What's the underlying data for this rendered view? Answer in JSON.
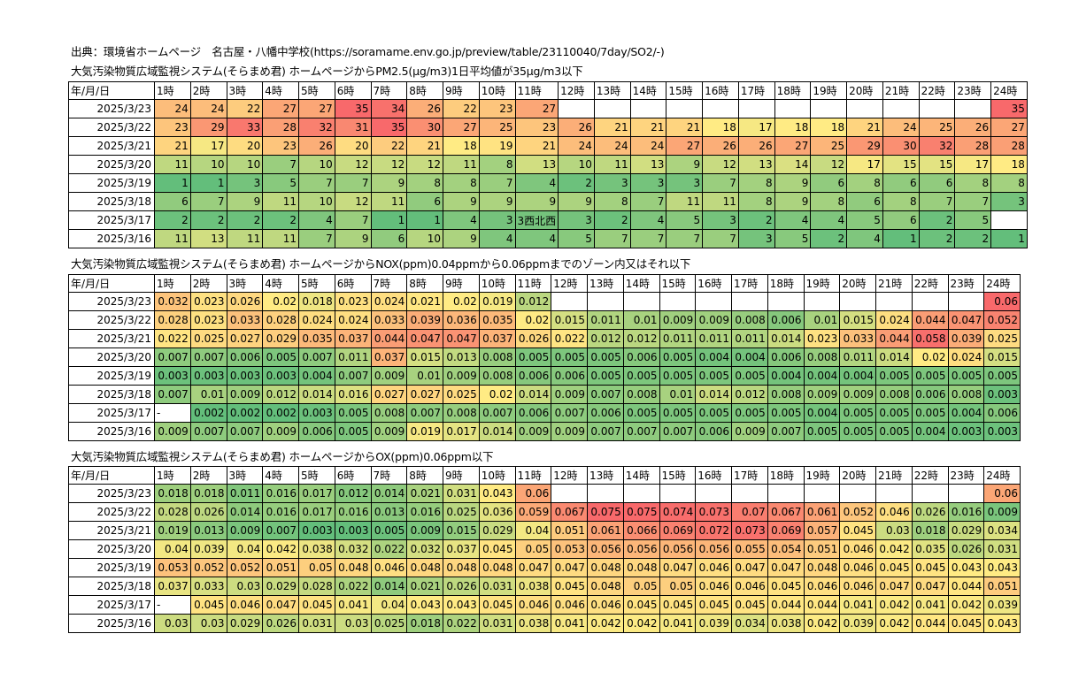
{
  "source_line": "出典：環境省ホームページ　名古屋・八幡中学校(https://soramame.env.go.jp/preview/table/23110040/7day/SO2/-)",
  "header_row": [
    "年/月/日",
    "1時",
    "2時",
    "3時",
    "4時",
    "5時",
    "6時",
    "7時",
    "8時",
    "9時",
    "10時",
    "11時",
    "12時",
    "13時",
    "14時",
    "15時",
    "16時",
    "17時",
    "18時",
    "19時",
    "20時",
    "21時",
    "22時",
    "23時",
    "24時"
  ],
  "dates": [
    "2025/3/23",
    "2025/3/22",
    "2025/3/21",
    "2025/3/20",
    "2025/3/19",
    "2025/3/18",
    "2025/3/17",
    "2025/3/16"
  ],
  "palette": {
    "red": "#f8696b",
    "orange": "#fbaa77",
    "yellow": "#ffeb84",
    "lightgreen": "#c3da80",
    "green": "#63be7b",
    "white": "#ffffff"
  },
  "tables": [
    {
      "title": "大気汚染物質広域監視システム(そらまめ君) ホームページからPM2.5(μg/m3)1日平均値が35μg/m3以下",
      "color_scale": {
        "min": 1,
        "mid": 18,
        "max": 35
      },
      "rows": [
        [
          "24",
          "24",
          "22",
          "27",
          "27",
          "35",
          "34",
          "26",
          "22",
          "23",
          "27",
          "",
          "",
          "",
          "",
          "",
          "",
          "",
          "",
          "",
          "",
          "",
          "",
          "35"
        ],
        [
          "23",
          "29",
          "33",
          "28",
          "32",
          "31",
          "35",
          "30",
          "27",
          "25",
          "23",
          "26",
          "21",
          "21",
          "21",
          "18",
          "17",
          "18",
          "18",
          "21",
          "24",
          "25",
          "26",
          "27"
        ],
        [
          "21",
          "17",
          "20",
          "23",
          "26",
          "20",
          "22",
          "21",
          "18",
          "19",
          "21",
          "24",
          "24",
          "24",
          "27",
          "26",
          "26",
          "27",
          "25",
          "29",
          "30",
          "32",
          "28",
          "28"
        ],
        [
          "11",
          "10",
          "10",
          "7",
          "10",
          "12",
          "12",
          "12",
          "11",
          "8",
          "13",
          "10",
          "11",
          "13",
          "9",
          "12",
          "13",
          "14",
          "12",
          "17",
          "15",
          "15",
          "17",
          "18"
        ],
        [
          "1",
          "1",
          "3",
          "5",
          "7",
          "7",
          "9",
          "8",
          "8",
          "7",
          "4",
          "2",
          "3",
          "3",
          "3",
          "7",
          "8",
          "9",
          "6",
          "8",
          "6",
          "6",
          "8",
          "8"
        ],
        [
          "6",
          "7",
          "9",
          "11",
          "10",
          "12",
          "11",
          "6",
          "9",
          "9",
          "9",
          "9",
          "8",
          "7",
          "11",
          "11",
          "8",
          "9",
          "8",
          "6",
          "8",
          "7",
          "7",
          "3"
        ],
        [
          "2",
          "2",
          "2",
          "2",
          "4",
          "7",
          "1",
          "1",
          "4",
          "3",
          "3西北西",
          "3",
          "2",
          "4",
          "5",
          "3",
          "2",
          "4",
          "4",
          "5",
          "6",
          "2",
          "5",
          ""
        ],
        [
          "11",
          "13",
          "11",
          "11",
          "7",
          "9",
          "6",
          "10",
          "9",
          "4",
          "4",
          "5",
          "7",
          "7",
          "7",
          "7",
          "3",
          "5",
          "2",
          "4",
          "1",
          "2",
          "2",
          "1"
        ]
      ]
    },
    {
      "title": "大気汚染物質広域監視システム(そらまめ君) ホームページからNOX(ppm)0.04ppmから0.06ppmまでのゾーン内又はそれ以下",
      "color_scale": {
        "min": 0.002,
        "mid": 0.02,
        "max": 0.06
      },
      "rows": [
        [
          "0.032",
          "0.023",
          "0.026",
          "0.02",
          "0.018",
          "0.023",
          "0.024",
          "0.021",
          "0.02",
          "0.019",
          "0.012",
          "",
          "",
          "",
          "",
          "",
          "",
          "",
          "",
          "",
          "",
          "",
          "",
          "0.06"
        ],
        [
          "0.028",
          "0.023",
          "0.033",
          "0.028",
          "0.024",
          "0.024",
          "0.033",
          "0.039",
          "0.036",
          "0.035",
          "0.02",
          "0.015",
          "0.011",
          "0.01",
          "0.009",
          "0.009",
          "0.008",
          "0.006",
          "0.01",
          "0.015",
          "0.024",
          "0.044",
          "0.047",
          "0.052"
        ],
        [
          "0.022",
          "0.025",
          "0.027",
          "0.029",
          "0.035",
          "0.037",
          "0.044",
          "0.047",
          "0.047",
          "0.037",
          "0.026",
          "0.022",
          "0.012",
          "0.012",
          "0.011",
          "0.011",
          "0.011",
          "0.014",
          "0.023",
          "0.033",
          "0.044",
          "0.058",
          "0.039",
          "0.025"
        ],
        [
          "0.007",
          "0.007",
          "0.006",
          "0.005",
          "0.007",
          "0.011",
          "0.037",
          "0.015",
          "0.013",
          "0.008",
          "0.005",
          "0.005",
          "0.005",
          "0.006",
          "0.005",
          "0.004",
          "0.004",
          "0.006",
          "0.008",
          "0.011",
          "0.014",
          "0.02",
          "0.024",
          "0.015"
        ],
        [
          "0.003",
          "0.003",
          "0.003",
          "0.003",
          "0.004",
          "0.007",
          "0.009",
          "0.01",
          "0.009",
          "0.008",
          "0.006",
          "0.006",
          "0.005",
          "0.005",
          "0.005",
          "0.005",
          "0.005",
          "0.004",
          "0.004",
          "0.004",
          "0.005",
          "0.005",
          "0.005",
          "0.005"
        ],
        [
          "0.007",
          "0.01",
          "0.009",
          "0.012",
          "0.014",
          "0.016",
          "0.027",
          "0.027",
          "0.025",
          "0.02",
          "0.014",
          "0.009",
          "0.007",
          "0.008",
          "0.01",
          "0.014",
          "0.012",
          "0.008",
          "0.009",
          "0.009",
          "0.008",
          "0.006",
          "0.008",
          "0.003"
        ],
        [
          "-",
          "0.002",
          "0.002",
          "0.002",
          "0.003",
          "0.005",
          "0.008",
          "0.007",
          "0.008",
          "0.007",
          "0.006",
          "0.007",
          "0.006",
          "0.005",
          "0.005",
          "0.005",
          "0.005",
          "0.005",
          "0.004",
          "0.005",
          "0.005",
          "0.005",
          "0.004",
          "0.006"
        ],
        [
          "0.009",
          "0.007",
          "0.007",
          "0.009",
          "0.006",
          "0.005",
          "0.009",
          "0.019",
          "0.017",
          "0.014",
          "0.009",
          "0.009",
          "0.007",
          "0.007",
          "0.007",
          "0.006",
          "0.009",
          "0.007",
          "0.005",
          "0.005",
          "0.005",
          "0.004",
          "0.003",
          "0.003"
        ]
      ]
    },
    {
      "title": "大気汚染物質広域監視システム(そらまめ君) ホームページからOX(ppm)0.06ppm以下",
      "color_scale": {
        "min": 0.003,
        "mid": 0.043,
        "max": 0.075
      },
      "rows": [
        [
          "0.018",
          "0.018",
          "0.011",
          "0.016",
          "0.017",
          "0.012",
          "0.014",
          "0.021",
          "0.031",
          "0.043",
          "0.06",
          "",
          "",
          "",
          "",
          "",
          "",
          "",
          "",
          "",
          "",
          "",
          "",
          "0.06"
        ],
        [
          "0.028",
          "0.026",
          "0.014",
          "0.016",
          "0.017",
          "0.016",
          "0.013",
          "0.016",
          "0.025",
          "0.036",
          "0.059",
          "0.067",
          "0.075",
          "0.075",
          "0.074",
          "0.073",
          "0.07",
          "0.067",
          "0.061",
          "0.052",
          "0.046",
          "0.026",
          "0.016",
          "0.009"
        ],
        [
          "0.019",
          "0.013",
          "0.009",
          "0.007",
          "0.003",
          "0.003",
          "0.005",
          "0.009",
          "0.015",
          "0.029",
          "0.04",
          "0.051",
          "0.061",
          "0.066",
          "0.069",
          "0.072",
          "0.073",
          "0.069",
          "0.057",
          "0.045",
          "0.03",
          "0.018",
          "0.029",
          "0.034"
        ],
        [
          "0.04",
          "0.039",
          "0.04",
          "0.042",
          "0.038",
          "0.032",
          "0.022",
          "0.032",
          "0.037",
          "0.045",
          "0.05",
          "0.053",
          "0.056",
          "0.056",
          "0.056",
          "0.056",
          "0.055",
          "0.054",
          "0.051",
          "0.046",
          "0.042",
          "0.035",
          "0.026",
          "0.031"
        ],
        [
          "0.053",
          "0.052",
          "0.052",
          "0.051",
          "0.05",
          "0.048",
          "0.046",
          "0.048",
          "0.048",
          "0.048",
          "0.047",
          "0.047",
          "0.048",
          "0.048",
          "0.047",
          "0.046",
          "0.047",
          "0.047",
          "0.048",
          "0.046",
          "0.045",
          "0.045",
          "0.043",
          "0.043"
        ],
        [
          "0.037",
          "0.033",
          "0.03",
          "0.029",
          "0.028",
          "0.022",
          "0.014",
          "0.021",
          "0.026",
          "0.031",
          "0.038",
          "0.045",
          "0.048",
          "0.05",
          "0.05",
          "0.046",
          "0.046",
          "0.045",
          "0.046",
          "0.046",
          "0.047",
          "0.047",
          "0.044",
          "0.051"
        ],
        [
          "-",
          "0.045",
          "0.046",
          "0.047",
          "0.045",
          "0.041",
          "0.04",
          "0.043",
          "0.043",
          "0.045",
          "0.046",
          "0.046",
          "0.046",
          "0.045",
          "0.045",
          "0.045",
          "0.045",
          "0.044",
          "0.044",
          "0.041",
          "0.042",
          "0.041",
          "0.042",
          "0.039"
        ],
        [
          "0.03",
          "0.03",
          "0.029",
          "0.026",
          "0.031",
          "0.03",
          "0.025",
          "0.018",
          "0.022",
          "0.031",
          "0.038",
          "0.041",
          "0.042",
          "0.042",
          "0.041",
          "0.039",
          "0.034",
          "0.038",
          "0.042",
          "0.039",
          "0.042",
          "0.044",
          "0.045",
          "0.043"
        ]
      ]
    }
  ]
}
